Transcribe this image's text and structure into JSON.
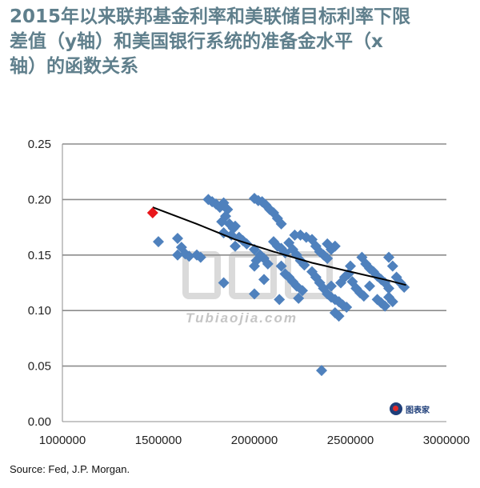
{
  "title_lines": [
    "2015年以来联邦基金利率和美联储目标利率下限",
    "差值（y轴）和美国银行系统的准备金水平（x",
    "轴）的函数关系"
  ],
  "source": "Source: Fed, J.P. Morgan.",
  "watermark": {
    "text": "Tubiaojia.com",
    "logo_text": "图表家"
  },
  "colors": {
    "points": "#4f81bd",
    "highlight": "#e8161b",
    "trend": "#000000",
    "grid": "#8c8c8c",
    "title": "#5f7f8c"
  },
  "chart_data": {
    "type": "scatter",
    "title": "",
    "xlabel": "",
    "ylabel": "",
    "xlim": [
      1000000,
      3000000
    ],
    "ylim": [
      0,
      0.25
    ],
    "x_ticks": [
      1000000,
      1500000,
      2000000,
      2500000,
      3000000
    ],
    "y_ticks": [
      0.0,
      0.05,
      0.1,
      0.15,
      0.2,
      0.25
    ],
    "x_tick_labels": [
      "1000000",
      "1500000",
      "2000000",
      "2500000",
      "3000000"
    ],
    "y_tick_labels": [
      "0.00",
      "0.05",
      "0.10",
      "0.15",
      "0.20",
      "0.25"
    ],
    "grid": "horizontal",
    "highlight_point": {
      "x": 1470000,
      "y": 0.188
    },
    "trend_line": [
      [
        1470000,
        0.193
      ],
      [
        1700000,
        0.178
      ],
      [
        1900000,
        0.164
      ],
      [
        2100000,
        0.153
      ],
      [
        2300000,
        0.143
      ],
      [
        2500000,
        0.135
      ],
      [
        2700000,
        0.127
      ],
      [
        2790000,
        0.123
      ]
    ],
    "points": [
      [
        1500000,
        0.162
      ],
      [
        1600000,
        0.165
      ],
      [
        1620000,
        0.157
      ],
      [
        1640000,
        0.151
      ],
      [
        1660000,
        0.149
      ],
      [
        1700000,
        0.15
      ],
      [
        1720000,
        0.148
      ],
      [
        1600000,
        0.15
      ],
      [
        1760000,
        0.2
      ],
      [
        1780000,
        0.198
      ],
      [
        1800000,
        0.196
      ],
      [
        1820000,
        0.193
      ],
      [
        1840000,
        0.197
      ],
      [
        1860000,
        0.191
      ],
      [
        1850000,
        0.185
      ],
      [
        1830000,
        0.18
      ],
      [
        1870000,
        0.178
      ],
      [
        1890000,
        0.174
      ],
      [
        1900000,
        0.176
      ],
      [
        1840000,
        0.17
      ],
      [
        1880000,
        0.168
      ],
      [
        1920000,
        0.166
      ],
      [
        1940000,
        0.163
      ],
      [
        1960000,
        0.16
      ],
      [
        1900000,
        0.158
      ],
      [
        1840000,
        0.125
      ],
      [
        2000000,
        0.201
      ],
      [
        2020000,
        0.199
      ],
      [
        2040000,
        0.198
      ],
      [
        2060000,
        0.195
      ],
      [
        2080000,
        0.191
      ],
      [
        2100000,
        0.188
      ],
      [
        2120000,
        0.183
      ],
      [
        2140000,
        0.178
      ],
      [
        2000000,
        0.155
      ],
      [
        2030000,
        0.15
      ],
      [
        2010000,
        0.145
      ],
      [
        2050000,
        0.147
      ],
      [
        2070000,
        0.142
      ],
      [
        2000000,
        0.14
      ],
      [
        2050000,
        0.128
      ],
      [
        2000000,
        0.115
      ],
      [
        2100000,
        0.162
      ],
      [
        2120000,
        0.158
      ],
      [
        2140000,
        0.156
      ],
      [
        2160000,
        0.152
      ],
      [
        2180000,
        0.161
      ],
      [
        2200000,
        0.155
      ],
      [
        2220000,
        0.15
      ],
      [
        2240000,
        0.145
      ],
      [
        2260000,
        0.141
      ],
      [
        2140000,
        0.14
      ],
      [
        2160000,
        0.133
      ],
      [
        2180000,
        0.13
      ],
      [
        2200000,
        0.126
      ],
      [
        2220000,
        0.122
      ],
      [
        2250000,
        0.118
      ],
      [
        2130000,
        0.11
      ],
      [
        2230000,
        0.111
      ],
      [
        2210000,
        0.168
      ],
      [
        2240000,
        0.168
      ],
      [
        2270000,
        0.166
      ],
      [
        2300000,
        0.164
      ],
      [
        2320000,
        0.158
      ],
      [
        2340000,
        0.153
      ],
      [
        2360000,
        0.15
      ],
      [
        2380000,
        0.147
      ],
      [
        2400000,
        0.155
      ],
      [
        2420000,
        0.158
      ],
      [
        2380000,
        0.16
      ],
      [
        2300000,
        0.135
      ],
      [
        2320000,
        0.13
      ],
      [
        2340000,
        0.125
      ],
      [
        2360000,
        0.12
      ],
      [
        2380000,
        0.115
      ],
      [
        2400000,
        0.112
      ],
      [
        2420000,
        0.11
      ],
      [
        2440000,
        0.108
      ],
      [
        2460000,
        0.105
      ],
      [
        2480000,
        0.103
      ],
      [
        2420000,
        0.098
      ],
      [
        2440000,
        0.095
      ],
      [
        2400000,
        0.122
      ],
      [
        2450000,
        0.125
      ],
      [
        2470000,
        0.13
      ],
      [
        2490000,
        0.133
      ],
      [
        2510000,
        0.126
      ],
      [
        2530000,
        0.12
      ],
      [
        2550000,
        0.116
      ],
      [
        2570000,
        0.113
      ],
      [
        2560000,
        0.148
      ],
      [
        2580000,
        0.142
      ],
      [
        2600000,
        0.138
      ],
      [
        2620000,
        0.135
      ],
      [
        2640000,
        0.131
      ],
      [
        2660000,
        0.128
      ],
      [
        2680000,
        0.125
      ],
      [
        2700000,
        0.12
      ],
      [
        2640000,
        0.11
      ],
      [
        2660000,
        0.107
      ],
      [
        2680000,
        0.104
      ],
      [
        2700000,
        0.112
      ],
      [
        2720000,
        0.14
      ],
      [
        2700000,
        0.148
      ],
      [
        2740000,
        0.13
      ],
      [
        2760000,
        0.125
      ],
      [
        2780000,
        0.121
      ],
      [
        2720000,
        0.108
      ],
      [
        2600000,
        0.122
      ],
      [
        2500000,
        0.14
      ],
      [
        2350000,
        0.046
      ]
    ]
  }
}
